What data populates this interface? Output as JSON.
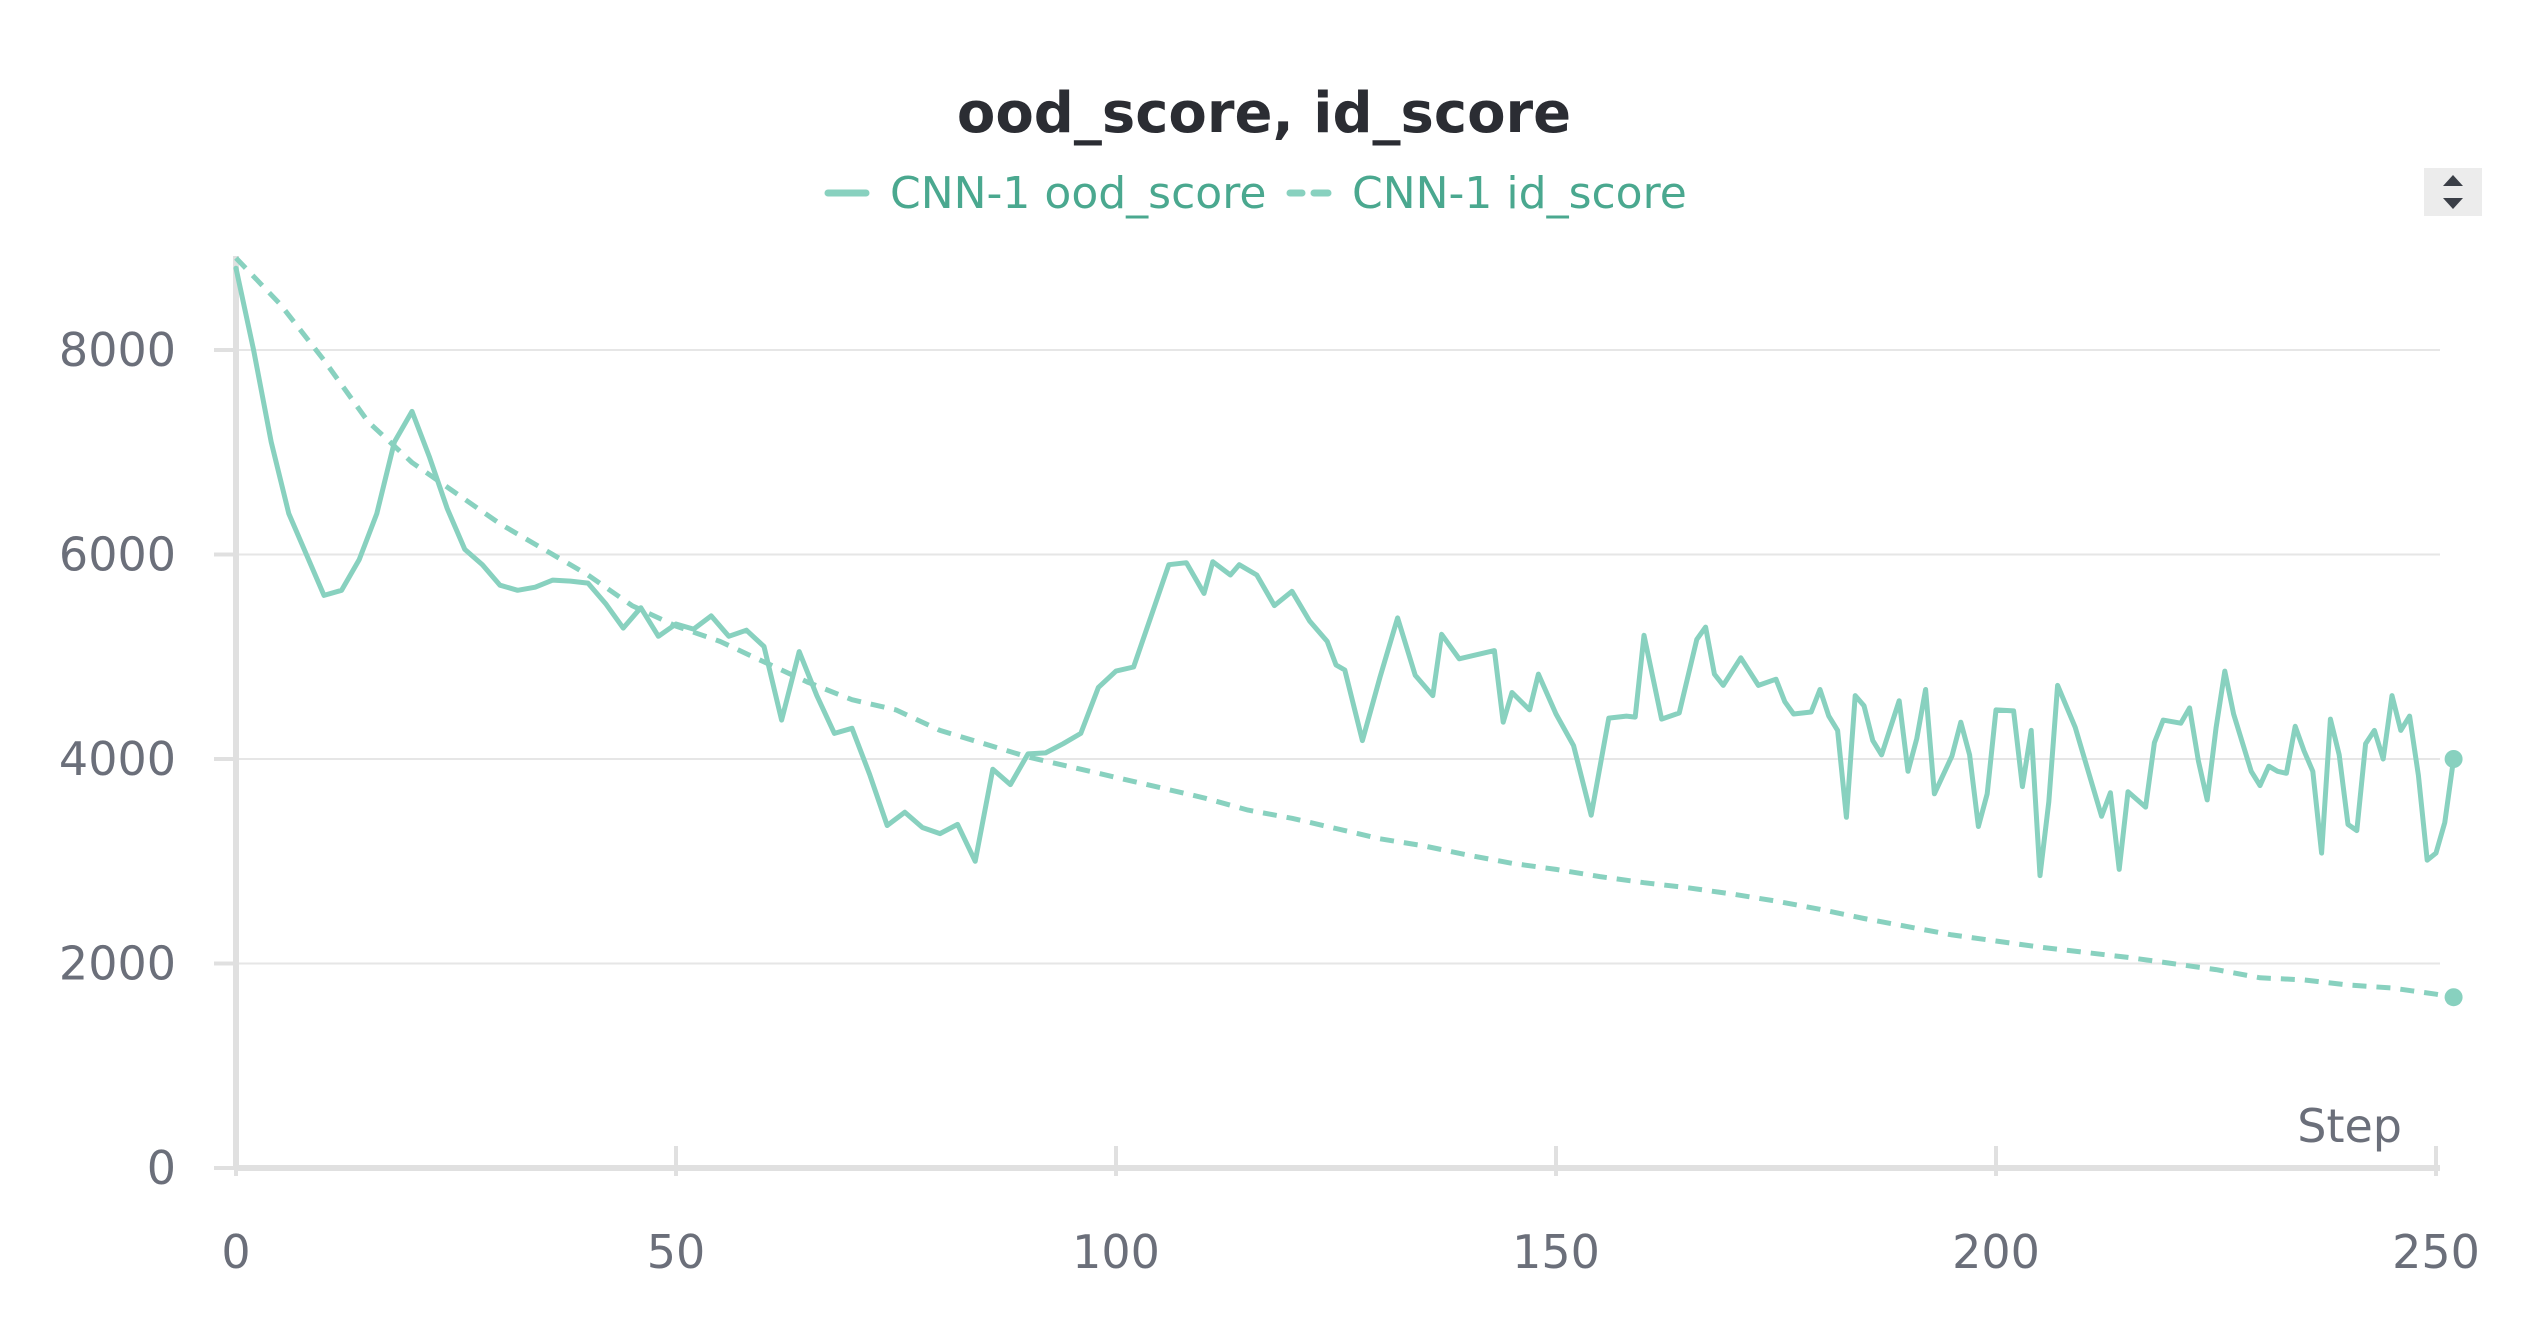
{
  "chart_data": {
    "type": "line",
    "title": "ood_score, id_score",
    "xlabel": "Step",
    "ylabel": "",
    "xlim": [
      0,
      250
    ],
    "ylim": [
      0,
      8900
    ],
    "xticks": [
      0,
      50,
      100,
      150,
      200,
      250
    ],
    "yticks": [
      0,
      2000,
      4000,
      6000,
      8000
    ],
    "grid": true,
    "legend": "top-center",
    "colors": {
      "series": "#88d1bf",
      "legend_text": "#4aa88f"
    },
    "series": [
      {
        "name": "CNN-1 ood_score",
        "style": "solid",
        "points": [
          [
            0,
            8800
          ],
          [
            2,
            8000
          ],
          [
            4,
            7100
          ],
          [
            6,
            6400
          ],
          [
            8,
            6000
          ],
          [
            10,
            5600
          ],
          [
            12,
            5650
          ],
          [
            14,
            5950
          ],
          [
            16,
            6400
          ],
          [
            18,
            7100
          ],
          [
            20,
            7400
          ],
          [
            22,
            6950
          ],
          [
            24,
            6450
          ],
          [
            26,
            6050
          ],
          [
            28,
            5900
          ],
          [
            30,
            5700
          ],
          [
            32,
            5650
          ],
          [
            34,
            5680
          ],
          [
            36,
            5750
          ],
          [
            38,
            5740
          ],
          [
            40,
            5720
          ],
          [
            42,
            5520
          ],
          [
            44,
            5280
          ],
          [
            46,
            5480
          ],
          [
            48,
            5200
          ],
          [
            50,
            5320
          ],
          [
            52,
            5270
          ],
          [
            54,
            5400
          ],
          [
            56,
            5200
          ],
          [
            58,
            5260
          ],
          [
            60,
            5100
          ],
          [
            62,
            4380
          ],
          [
            64,
            5050
          ],
          [
            66,
            4620
          ],
          [
            68,
            4250
          ],
          [
            70,
            4300
          ],
          [
            72,
            3850
          ],
          [
            74,
            3350
          ],
          [
            76,
            3480
          ],
          [
            78,
            3330
          ],
          [
            80,
            3270
          ],
          [
            82,
            3360
          ],
          [
            84,
            3000
          ],
          [
            86,
            3900
          ],
          [
            88,
            3750
          ],
          [
            90,
            4050
          ],
          [
            92,
            4060
          ],
          [
            94,
            4150
          ],
          [
            96,
            4250
          ],
          [
            98,
            4700
          ],
          [
            100,
            4860
          ],
          [
            102,
            4900
          ],
          [
            104,
            5400
          ],
          [
            106,
            5900
          ],
          [
            108,
            5920
          ],
          [
            110,
            5620
          ],
          [
            111,
            5930
          ],
          [
            113,
            5800
          ],
          [
            114,
            5900
          ],
          [
            116,
            5800
          ],
          [
            118,
            5500
          ],
          [
            120,
            5640
          ],
          [
            122,
            5350
          ],
          [
            124,
            5150
          ],
          [
            125,
            4920
          ],
          [
            126,
            4870
          ],
          [
            128,
            4180
          ],
          [
            130,
            4800
          ],
          [
            132,
            5380
          ],
          [
            134,
            4820
          ],
          [
            136,
            4620
          ],
          [
            137,
            5220
          ],
          [
            139,
            4980
          ],
          [
            141,
            5020
          ],
          [
            143,
            5060
          ],
          [
            144,
            4360
          ],
          [
            145,
            4650
          ],
          [
            147,
            4480
          ],
          [
            148,
            4830
          ],
          [
            150,
            4440
          ],
          [
            152,
            4130
          ],
          [
            154,
            3450
          ],
          [
            156,
            4400
          ],
          [
            158,
            4420
          ],
          [
            159,
            4410
          ],
          [
            160,
            5210
          ],
          [
            162,
            4390
          ],
          [
            164,
            4450
          ],
          [
            166,
            5170
          ],
          [
            167,
            5290
          ],
          [
            168,
            4830
          ],
          [
            169,
            4720
          ],
          [
            171,
            4990
          ],
          [
            173,
            4720
          ],
          [
            175,
            4780
          ],
          [
            176,
            4560
          ],
          [
            177,
            4440
          ],
          [
            179,
            4460
          ],
          [
            180,
            4680
          ],
          [
            181,
            4420
          ],
          [
            182,
            4280
          ],
          [
            183,
            3430
          ],
          [
            184,
            4620
          ],
          [
            185,
            4520
          ],
          [
            186,
            4180
          ],
          [
            187,
            4040
          ],
          [
            189,
            4570
          ],
          [
            190,
            3880
          ],
          [
            191,
            4200
          ],
          [
            192,
            4680
          ],
          [
            193,
            3660
          ],
          [
            195,
            4030
          ],
          [
            196,
            4360
          ],
          [
            197,
            4040
          ],
          [
            198,
            3340
          ],
          [
            199,
            3660
          ],
          [
            200,
            4480
          ],
          [
            202,
            4470
          ],
          [
            203,
            3730
          ],
          [
            204,
            4280
          ],
          [
            205,
            2860
          ],
          [
            206,
            3580
          ],
          [
            207,
            4720
          ],
          [
            209,
            4310
          ],
          [
            210,
            4020
          ],
          [
            212,
            3440
          ],
          [
            213,
            3670
          ],
          [
            214,
            2920
          ],
          [
            215,
            3680
          ],
          [
            217,
            3530
          ],
          [
            218,
            4160
          ],
          [
            219,
            4380
          ],
          [
            221,
            4350
          ],
          [
            222,
            4500
          ],
          [
            223,
            3980
          ],
          [
            224,
            3600
          ],
          [
            225,
            4300
          ],
          [
            226,
            4860
          ],
          [
            227,
            4440
          ],
          [
            229,
            3880
          ],
          [
            230,
            3740
          ],
          [
            231,
            3930
          ],
          [
            232,
            3880
          ],
          [
            233,
            3860
          ],
          [
            234,
            4320
          ],
          [
            235,
            4080
          ],
          [
            236,
            3880
          ],
          [
            237,
            3080
          ],
          [
            238,
            4390
          ],
          [
            239,
            4040
          ],
          [
            240,
            3360
          ],
          [
            241,
            3300
          ],
          [
            242,
            4150
          ],
          [
            243,
            4280
          ],
          [
            244,
            4000
          ],
          [
            245,
            4620
          ],
          [
            246,
            4280
          ],
          [
            247,
            4420
          ],
          [
            248,
            3840
          ],
          [
            249,
            3010
          ],
          [
            250,
            3080
          ],
          [
            251,
            3380
          ],
          [
            252,
            4000
          ]
        ]
      },
      {
        "name": "CNN-1 id_score",
        "style": "dashed",
        "points": [
          [
            0,
            8900
          ],
          [
            5,
            8450
          ],
          [
            10,
            7900
          ],
          [
            15,
            7300
          ],
          [
            20,
            6900
          ],
          [
            25,
            6600
          ],
          [
            30,
            6300
          ],
          [
            35,
            6050
          ],
          [
            40,
            5800
          ],
          [
            45,
            5500
          ],
          [
            50,
            5300
          ],
          [
            55,
            5150
          ],
          [
            60,
            4950
          ],
          [
            65,
            4750
          ],
          [
            70,
            4580
          ],
          [
            75,
            4480
          ],
          [
            80,
            4280
          ],
          [
            85,
            4150
          ],
          [
            90,
            4020
          ],
          [
            95,
            3920
          ],
          [
            100,
            3820
          ],
          [
            105,
            3720
          ],
          [
            110,
            3620
          ],
          [
            115,
            3500
          ],
          [
            120,
            3420
          ],
          [
            125,
            3320
          ],
          [
            130,
            3220
          ],
          [
            135,
            3150
          ],
          [
            140,
            3060
          ],
          [
            145,
            2980
          ],
          [
            150,
            2920
          ],
          [
            155,
            2850
          ],
          [
            160,
            2790
          ],
          [
            165,
            2740
          ],
          [
            170,
            2680
          ],
          [
            175,
            2610
          ],
          [
            180,
            2530
          ],
          [
            185,
            2440
          ],
          [
            190,
            2360
          ],
          [
            195,
            2280
          ],
          [
            200,
            2220
          ],
          [
            205,
            2160
          ],
          [
            210,
            2110
          ],
          [
            215,
            2060
          ],
          [
            220,
            2000
          ],
          [
            225,
            1940
          ],
          [
            230,
            1860
          ],
          [
            235,
            1840
          ],
          [
            240,
            1790
          ],
          [
            245,
            1760
          ],
          [
            250,
            1700
          ],
          [
            252,
            1670
          ]
        ]
      }
    ]
  }
}
